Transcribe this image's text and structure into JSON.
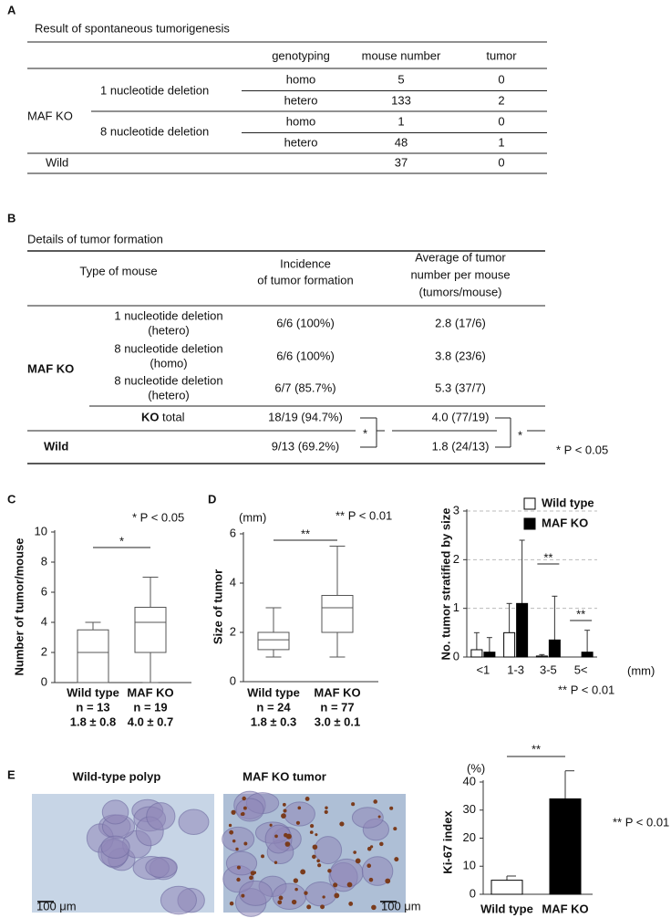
{
  "panel_labels": [
    "A",
    "B",
    "C",
    "D",
    "E"
  ],
  "table_a": {
    "title": "Result of spontaneous tumorigenesis",
    "columns": [
      "genotyping",
      "mouse number",
      "tumor"
    ],
    "group": "MAF KO",
    "subgroups": [
      "1 nucleotide deletion",
      "8 nucleotide deletion"
    ],
    "rows": [
      [
        "homo",
        5,
        0
      ],
      [
        "hetero",
        133,
        2
      ],
      [
        "homo",
        1,
        0
      ],
      [
        "hetero",
        48,
        1
      ]
    ],
    "wild": [
      "Wild",
      37,
      0
    ]
  },
  "table_b": {
    "title": "Details of tumor formation",
    "columns": [
      [
        "Type of mouse"
      ],
      [
        "Incidence",
        "of tumor formation"
      ],
      [
        "Average of tumor",
        "number per mouse",
        "(tumors/mouse)"
      ]
    ],
    "group": "MAF KO",
    "rows": [
      [
        [
          "1 nucleotide deletion",
          "(hetero)"
        ],
        "6/6  (100%)",
        "2.8 (17/6)"
      ],
      [
        [
          "8 nucleotide deletion",
          "(homo)"
        ],
        "6/6  (100%)",
        "3.8 (23/6)"
      ],
      [
        [
          "8 nucleotide deletion",
          "(hetero)"
        ],
        "6/7  (85.7%)",
        "5.3 (37/7)"
      ]
    ],
    "total": [
      "KO",
      "total",
      "18/19 (94.7%)",
      "4.0 (77/19)"
    ],
    "wild": [
      "Wild",
      "9/13  (69.2%)",
      "1.8 (24/13)"
    ],
    "significance": [
      "*",
      "*"
    ],
    "note": "* P < 0.05"
  },
  "images": {
    "titles": [
      "Wild-type polyp",
      "MAF KO tumor"
    ],
    "scale_bars": [
      "100 μm",
      "100 μm"
    ]
  },
  "chart_data": [
    {
      "type": "box",
      "ylabel": "Number of tumor/mouse",
      "annotation": "* P < 0.05",
      "significance": "*",
      "categories": [
        "Wild type",
        "MAF KO"
      ],
      "n_labels": [
        "n = 13",
        "n = 19"
      ],
      "mean_labels": [
        "1.8 ± 0.8",
        "4.0 ± 0.7"
      ],
      "boxes": [
        {
          "min": 0,
          "q1": 0,
          "median": 2,
          "q3": 3.5,
          "max": 4
        },
        {
          "min": 0,
          "q1": 2,
          "median": 4,
          "q3": 5,
          "max": 7
        }
      ],
      "ylim": [
        0,
        10
      ],
      "yticks": [
        0,
        2,
        4,
        6,
        8,
        10
      ],
      "grid": false
    },
    {
      "type": "box",
      "ylabel": "Size of tumor",
      "yunit": "(mm)",
      "annotation": "** P < 0.01",
      "significance": "**",
      "categories": [
        "Wild type",
        "MAF KO"
      ],
      "n_labels": [
        "n = 24",
        "n = 77"
      ],
      "mean_labels": [
        "1.8 ± 0.3",
        "3.0 ± 0.1"
      ],
      "boxes": [
        {
          "min": 1,
          "q1": 1.3,
          "median": 1.7,
          "q3": 2,
          "max": 3
        },
        {
          "min": 1,
          "q1": 2,
          "median": 3,
          "q3": 3.5,
          "max": 5.5
        }
      ],
      "ylim": [
        0,
        6
      ],
      "yticks": [
        0,
        2,
        4,
        6
      ],
      "grid": false
    },
    {
      "type": "grouped_bar",
      "ylabel": "No. tumor stratified by size",
      "xunit": "(mm)",
      "annotation": "** P < 0.01",
      "categories": [
        "<1",
        "1-3",
        "3-5",
        "5<"
      ],
      "significance": [
        "**",
        "**"
      ],
      "series": [
        {
          "name": "Wild type",
          "color": "#ffffff",
          "values": [
            0.15,
            0.5,
            0.02,
            0
          ],
          "errors": [
            0.35,
            0.6,
            0.03,
            0
          ]
        },
        {
          "name": "MAF KO",
          "color": "#000000",
          "values": [
            0.1,
            1.1,
            0.35,
            0.1
          ],
          "errors": [
            0.3,
            1.3,
            0.9,
            0.45
          ]
        }
      ],
      "ylim": [
        0,
        3
      ],
      "yticks": [
        0,
        1,
        2,
        3
      ],
      "grid": true
    },
    {
      "type": "bar",
      "ylabel": "Ki-67 index",
      "yunit": "(%)",
      "annotation": "** P < 0.01",
      "significance": "**",
      "categories": [
        "Wild type",
        "MAF KO"
      ],
      "values": [
        5,
        34
      ],
      "errors": [
        1.5,
        10
      ],
      "colors": [
        "#ffffff",
        "#000000"
      ],
      "ylim": [
        0,
        40
      ],
      "yticks": [
        0,
        10,
        20,
        30,
        40
      ],
      "grid": false
    }
  ]
}
